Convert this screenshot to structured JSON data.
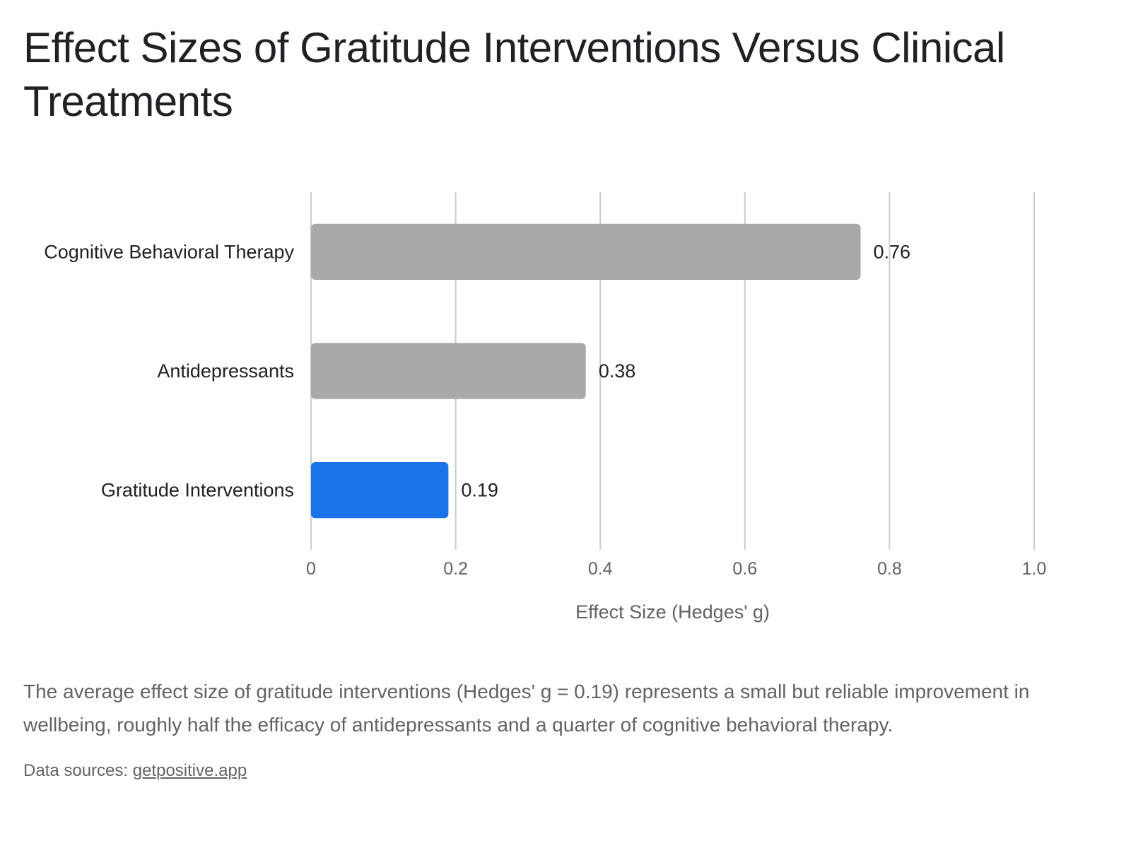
{
  "chart_data": {
    "type": "bar",
    "orientation": "horizontal",
    "title": "Effect Sizes of Gratitude Interventions Versus Clinical Treatments",
    "categories": [
      "Cognitive Behavioral Therapy",
      "Antidepressants",
      "Gratitude Interventions"
    ],
    "values": [
      0.76,
      0.38,
      0.19
    ],
    "value_labels": [
      "0.76",
      "0.38",
      "0.19"
    ],
    "bar_colors": [
      "#a9a9a9",
      "#a9a9a9",
      "#1a73e8"
    ],
    "xlabel": "Effect Size (Hedges' g)",
    "ylabel": "",
    "xlim": [
      0,
      1.0
    ],
    "x_ticks": [
      0,
      0.2,
      0.4,
      0.6,
      0.8,
      1.0
    ],
    "x_tick_labels": [
      "0",
      "0.2",
      "0.4",
      "0.6",
      "0.8",
      "1.0"
    ],
    "grid": true,
    "legend": "none"
  },
  "caption": "The average effect size of gratitude interventions (Hedges' g = 0.19) represents a small but reliable improvement in wellbeing, roughly half the efficacy of antidepressants and a quarter of cognitive behavioral therapy.",
  "source": {
    "prefix": "Data sources: ",
    "link_text": "getpositive.app"
  },
  "colors": {
    "highlight": "#1a73e8",
    "muted_bar": "#a9a9a9",
    "gridline": "#cccccc",
    "text": "#202124",
    "secondary_text": "#5f6368"
  }
}
